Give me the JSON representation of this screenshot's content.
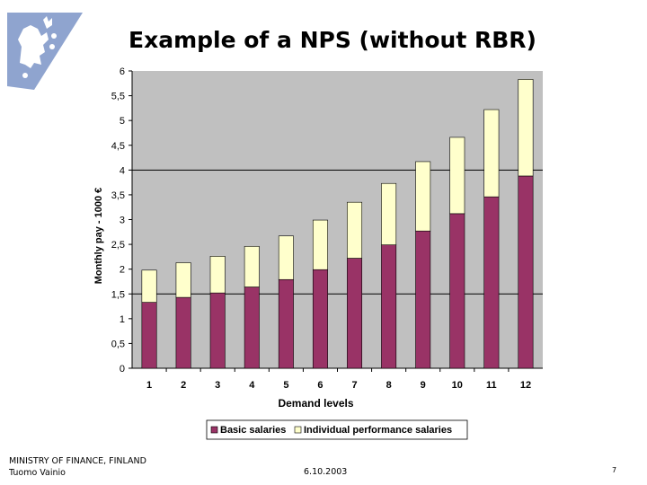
{
  "slide": {
    "title": "Example of a NPS (without RBR)",
    "footer_left_line1": "MINISTRY OF FINANCE, FINLAND",
    "footer_left_line2": "Tuomo Vainio",
    "footer_date": "6.10.2003",
    "page_number": "7"
  },
  "logo": {
    "icon": "finnish-lion-coat-of-arms-icon",
    "color": "#8fa4cf"
  },
  "chart_data": {
    "type": "bar",
    "stacked": true,
    "title": "",
    "xlabel": "Demand levels",
    "ylabel": "Monthly pay - 1000 €",
    "categories": [
      "1",
      "2",
      "3",
      "4",
      "5",
      "6",
      "7",
      "8",
      "9",
      "10",
      "11",
      "12"
    ],
    "series": [
      {
        "name": "Basic salaries",
        "color": "#993366",
        "values": [
          1.33,
          1.43,
          1.52,
          1.64,
          1.79,
          1.99,
          2.22,
          2.49,
          2.77,
          3.12,
          3.46,
          3.88
        ]
      },
      {
        "name": "Individual performance salaries",
        "color": "#ffffcc",
        "values": [
          0.65,
          0.7,
          0.74,
          0.82,
          0.88,
          1.0,
          1.13,
          1.24,
          1.4,
          1.54,
          1.76,
          1.95
        ]
      }
    ],
    "yticks": [
      "0",
      "0,5",
      "1",
      "1,5",
      "2",
      "2,5",
      "3",
      "3,5",
      "4",
      "4,5",
      "5",
      "5,5",
      "6"
    ],
    "ylim": [
      0,
      6
    ],
    "ytick_step": 0.5,
    "grid": "horizontal lines at 1,5 and 4",
    "plot_background": "#c0c0c0",
    "legend_position": "bottom"
  }
}
